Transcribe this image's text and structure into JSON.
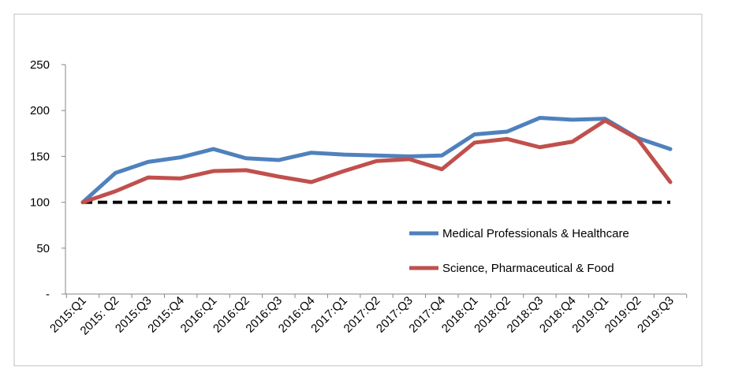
{
  "chart_data": {
    "type": "line",
    "categories": [
      "2015:Q1",
      "2015: Q2",
      "2015:Q3",
      "2015:Q4",
      "2016:Q1",
      "2016:Q2",
      "2016:Q3",
      "2016:Q4",
      "2017:Q1",
      "2017:Q2",
      "2017:Q3",
      "2017:Q4",
      "2018:Q1",
      "2018:Q2",
      "2018:Q3",
      "2018:Q4",
      "2019:Q1",
      "2019:Q2",
      "2019:Q3"
    ],
    "y_ticks": [
      "-",
      "50",
      "100",
      "150",
      "200",
      "250"
    ],
    "ylim": [
      0,
      250
    ],
    "series": [
      {
        "name": "Medical Professionals & Healthcare",
        "color": "#4f81bd",
        "values": [
          100,
          132,
          144,
          149,
          158,
          148,
          146,
          154,
          152,
          151,
          150,
          151,
          174,
          177,
          192,
          190,
          191,
          170,
          158
        ]
      },
      {
        "name": "Science, Pharmaceutical & Food",
        "color": "#c0504d",
        "values": [
          100,
          112,
          127,
          126,
          134,
          135,
          128,
          122,
          134,
          145,
          147,
          136,
          165,
          169,
          160,
          166,
          189,
          169,
          122
        ]
      }
    ],
    "reference_line": {
      "value": 100,
      "color": "#000000",
      "style": "dashed"
    },
    "legend_position": "right",
    "grid": false
  }
}
